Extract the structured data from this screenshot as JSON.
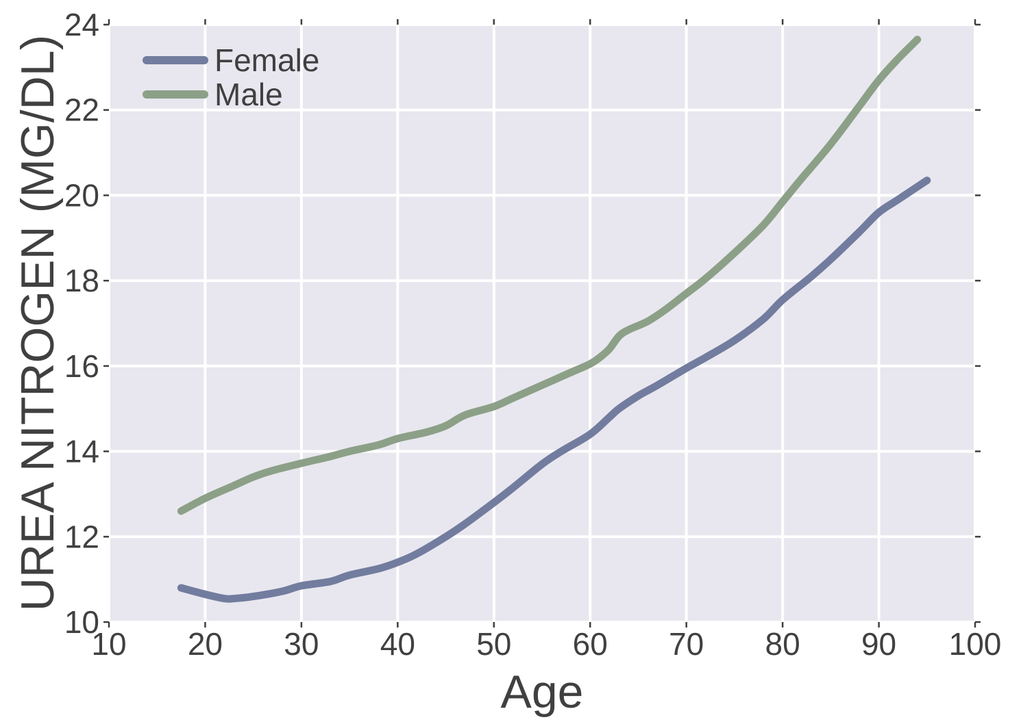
{
  "chart_data": {
    "type": "line",
    "title": "",
    "xlabel": "Age",
    "ylabel": "UREA NITROGEN (MG/DL)",
    "xlim": [
      10,
      100
    ],
    "ylim": [
      10,
      24
    ],
    "xticks": [
      10,
      20,
      30,
      40,
      50,
      60,
      70,
      80,
      90,
      100
    ],
    "yticks": [
      10,
      12,
      14,
      16,
      18,
      20,
      22,
      24
    ],
    "grid": true,
    "legend_position": "upper-left",
    "series": [
      {
        "name": "Female",
        "color": "#727c9e",
        "x": [
          17.5,
          20,
          22,
          23,
          25,
          28,
          30,
          33,
          35,
          38,
          40,
          42,
          45,
          47,
          50,
          52,
          55,
          57,
          60,
          62,
          63,
          65,
          67,
          70,
          72,
          75,
          78,
          80,
          83,
          85,
          88,
          90,
          92,
          95
        ],
        "y": [
          10.8,
          10.65,
          10.55,
          10.55,
          10.6,
          10.72,
          10.85,
          10.95,
          11.1,
          11.25,
          11.4,
          11.6,
          12.0,
          12.3,
          12.8,
          13.15,
          13.7,
          14.0,
          14.4,
          14.8,
          15.0,
          15.3,
          15.55,
          15.95,
          16.2,
          16.6,
          17.1,
          17.55,
          18.1,
          18.5,
          19.15,
          19.6,
          19.9,
          20.35
        ]
      },
      {
        "name": "Male",
        "color": "#8ca087",
        "x": [
          17.5,
          20,
          23,
          25,
          27,
          30,
          33,
          35,
          38,
          40,
          43,
          45,
          47,
          50,
          52,
          55,
          58,
          60,
          61,
          62,
          63,
          64,
          66,
          68,
          70,
          72,
          75,
          78,
          80,
          82,
          85,
          88,
          90,
          92,
          94
        ],
        "y": [
          12.6,
          12.9,
          13.2,
          13.4,
          13.55,
          13.72,
          13.88,
          14.0,
          14.15,
          14.3,
          14.45,
          14.6,
          14.85,
          15.05,
          15.25,
          15.55,
          15.85,
          16.05,
          16.2,
          16.4,
          16.7,
          16.85,
          17.05,
          17.35,
          17.7,
          18.05,
          18.65,
          19.3,
          19.85,
          20.4,
          21.2,
          22.1,
          22.7,
          23.2,
          23.65
        ]
      }
    ],
    "colors": {
      "plot_background": "#e8e7ef",
      "gridline": "#ffffff",
      "tick": "#3f3f3f",
      "text": "#404040"
    }
  }
}
